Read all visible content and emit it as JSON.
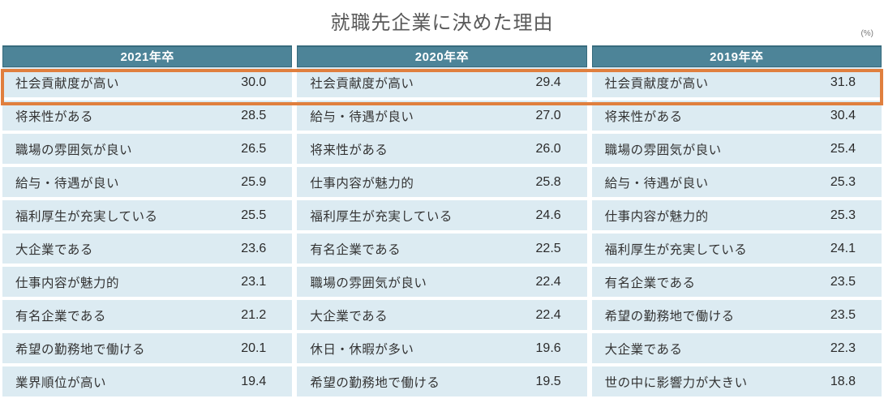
{
  "title": "就職先企業に決めた理由",
  "unit_label": "(%)",
  "colors": {
    "header_bg": "#4d8498",
    "header_border": "#376b7d",
    "header_text": "#ffffff",
    "row_bg": "#dcebf2",
    "row_text": "#333333",
    "title_text": "#595959",
    "highlight_border": "#e07f3e"
  },
  "highlight": {
    "row_index": 0,
    "description": "orange frame around first-ranked reason across all three columns"
  },
  "chart_data": {
    "type": "table",
    "title": "就職先企業に決めた理由",
    "unit": "%",
    "columns": [
      {
        "header": "2021年卒",
        "rows": [
          {
            "label": "社会貢献度が高い",
            "value": "30.0"
          },
          {
            "label": "将来性がある",
            "value": "28.5"
          },
          {
            "label": "職場の雰囲気が良い",
            "value": "26.5"
          },
          {
            "label": "給与・待遇が良い",
            "value": "25.9"
          },
          {
            "label": "福利厚生が充実している",
            "value": "25.5"
          },
          {
            "label": "大企業である",
            "value": "23.6"
          },
          {
            "label": "仕事内容が魅力的",
            "value": "23.1"
          },
          {
            "label": "有名企業である",
            "value": "21.2"
          },
          {
            "label": "希望の勤務地で働ける",
            "value": "20.1"
          },
          {
            "label": "業界順位が高い",
            "value": "19.4"
          }
        ]
      },
      {
        "header": "2020年卒",
        "rows": [
          {
            "label": "社会貢献度が高い",
            "value": "29.4"
          },
          {
            "label": "給与・待遇が良い",
            "value": "27.0"
          },
          {
            "label": "将来性がある",
            "value": "26.0"
          },
          {
            "label": "仕事内容が魅力的",
            "value": "25.8"
          },
          {
            "label": "福利厚生が充実している",
            "value": "24.6"
          },
          {
            "label": "有名企業である",
            "value": "22.5"
          },
          {
            "label": "職場の雰囲気が良い",
            "value": "22.4"
          },
          {
            "label": "大企業である",
            "value": "22.4"
          },
          {
            "label": "休日・休暇が多い",
            "value": "19.6"
          },
          {
            "label": "希望の勤務地で働ける",
            "value": "19.5"
          }
        ]
      },
      {
        "header": "2019年卒",
        "rows": [
          {
            "label": "社会貢献度が高い",
            "value": "31.8"
          },
          {
            "label": "将来性がある",
            "value": "30.4"
          },
          {
            "label": "職場の雰囲気が良い",
            "value": "25.4"
          },
          {
            "label": "給与・待遇が良い",
            "value": "25.3"
          },
          {
            "label": "仕事内容が魅力的",
            "value": "25.3"
          },
          {
            "label": "福利厚生が充実している",
            "value": "24.1"
          },
          {
            "label": "有名企業である",
            "value": "23.5"
          },
          {
            "label": "希望の勤務地で働ける",
            "value": "23.5"
          },
          {
            "label": "大企業である",
            "value": "22.3"
          },
          {
            "label": "世の中に影響力が大きい",
            "value": "18.8"
          }
        ]
      }
    ]
  }
}
